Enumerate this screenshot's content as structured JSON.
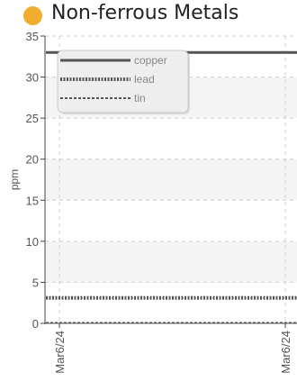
{
  "header": {
    "title": "Non-ferrous Metals",
    "status_color": "#f0ad2e"
  },
  "chart_data": {
    "type": "line",
    "title": "Non-ferrous Metals",
    "xlabel": "",
    "ylabel": "ppm",
    "categories": [
      "Mar6/24",
      "Mar6/24"
    ],
    "ylim": [
      0,
      35
    ],
    "yticks": [
      0,
      5,
      10,
      15,
      20,
      25,
      30,
      35
    ],
    "grid": true,
    "legend_position": "top-left",
    "series": [
      {
        "name": "copper",
        "values": [
          33,
          33
        ],
        "color": "#555555",
        "style": "solid"
      },
      {
        "name": "lead",
        "values": [
          3.1,
          3.1
        ],
        "color": "#555555",
        "style": "dotted"
      },
      {
        "name": "tin",
        "values": [
          0.05,
          0.05
        ],
        "color": "#555555",
        "style": "dashed"
      }
    ]
  }
}
